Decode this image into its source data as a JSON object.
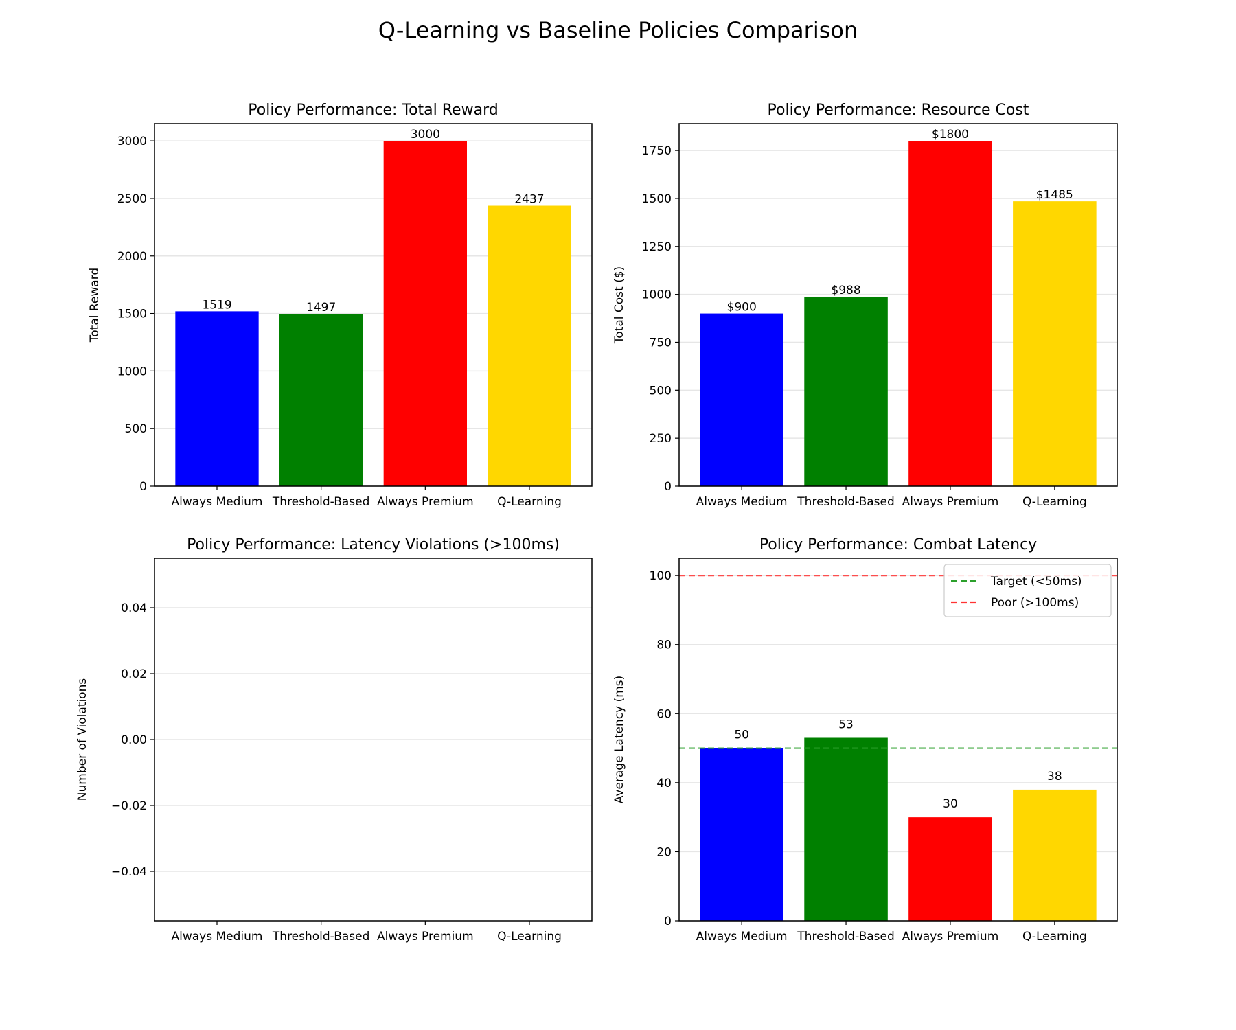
{
  "suptitle": "Q-Learning vs Baseline Policies Comparison",
  "chart_data": [
    {
      "type": "bar",
      "title": "Policy Performance: Total Reward",
      "xlabel": "",
      "ylabel": "Total Reward",
      "categories": [
        "Always Medium",
        "Threshold-Based",
        "Always Premium",
        "Q-Learning"
      ],
      "values": [
        1519,
        1497,
        3000,
        2437
      ],
      "value_labels": [
        "1519",
        "1497",
        "3000",
        "2437"
      ],
      "colors": [
        "#0000ff",
        "#008000",
        "#ff0000",
        "#ffd700"
      ],
      "ylim": [
        0,
        3150
      ],
      "yticks": [
        0,
        500,
        1000,
        1500,
        2000,
        2500,
        3000
      ],
      "ytick_labels": [
        "0",
        "500",
        "1000",
        "1500",
        "2000",
        "2500",
        "3000"
      ],
      "grid": "y"
    },
    {
      "type": "bar",
      "title": "Policy Performance: Resource Cost",
      "xlabel": "",
      "ylabel": "Total Cost ($)",
      "categories": [
        "Always Medium",
        "Threshold-Based",
        "Always Premium",
        "Q-Learning"
      ],
      "values": [
        900,
        988,
        1800,
        1485
      ],
      "value_labels": [
        "$900",
        "$988",
        "$1800",
        "$1485"
      ],
      "colors": [
        "#0000ff",
        "#008000",
        "#ff0000",
        "#ffd700"
      ],
      "ylim": [
        0,
        1890
      ],
      "yticks": [
        0,
        250,
        500,
        750,
        1000,
        1250,
        1500,
        1750
      ],
      "ytick_labels": [
        "0",
        "250",
        "500",
        "750",
        "1000",
        "1250",
        "1500",
        "1750"
      ],
      "grid": "y"
    },
    {
      "type": "bar",
      "title": "Policy Performance: Latency Violations (>100ms)",
      "xlabel": "",
      "ylabel": "Number of Violations",
      "categories": [
        "Always Medium",
        "Threshold-Based",
        "Always Premium",
        "Q-Learning"
      ],
      "values": [
        0,
        0,
        0,
        0
      ],
      "value_labels": [],
      "colors": [
        "#0000ff",
        "#008000",
        "#ff0000",
        "#ffd700"
      ],
      "ylim": [
        -0.055,
        0.055
      ],
      "yticks": [
        -0.04,
        -0.02,
        0.0,
        0.02,
        0.04
      ],
      "ytick_labels": [
        "−0.04",
        "−0.02",
        "0.00",
        "0.02",
        "0.04"
      ],
      "grid": "y"
    },
    {
      "type": "bar",
      "title": "Policy Performance: Combat Latency",
      "xlabel": "",
      "ylabel": "Average Latency (ms)",
      "categories": [
        "Always Medium",
        "Threshold-Based",
        "Always Premium",
        "Q-Learning"
      ],
      "values": [
        50,
        53,
        30,
        38
      ],
      "value_labels": [
        "50",
        "53",
        "30",
        "38"
      ],
      "colors": [
        "#0000ff",
        "#008000",
        "#ff0000",
        "#ffd700"
      ],
      "ylim": [
        0,
        105
      ],
      "yticks": [
        0,
        20,
        40,
        60,
        80,
        100
      ],
      "ytick_labels": [
        "0",
        "20",
        "40",
        "60",
        "80",
        "100"
      ],
      "grid": "y",
      "hlines": [
        {
          "y": 50,
          "color": "#2ca02c",
          "style": "dashed",
          "label": "Target (<50ms)"
        },
        {
          "y": 100,
          "color": "#ff3333",
          "style": "dashed",
          "label": "Poor (>100ms)"
        }
      ],
      "legend": "top-right"
    }
  ]
}
